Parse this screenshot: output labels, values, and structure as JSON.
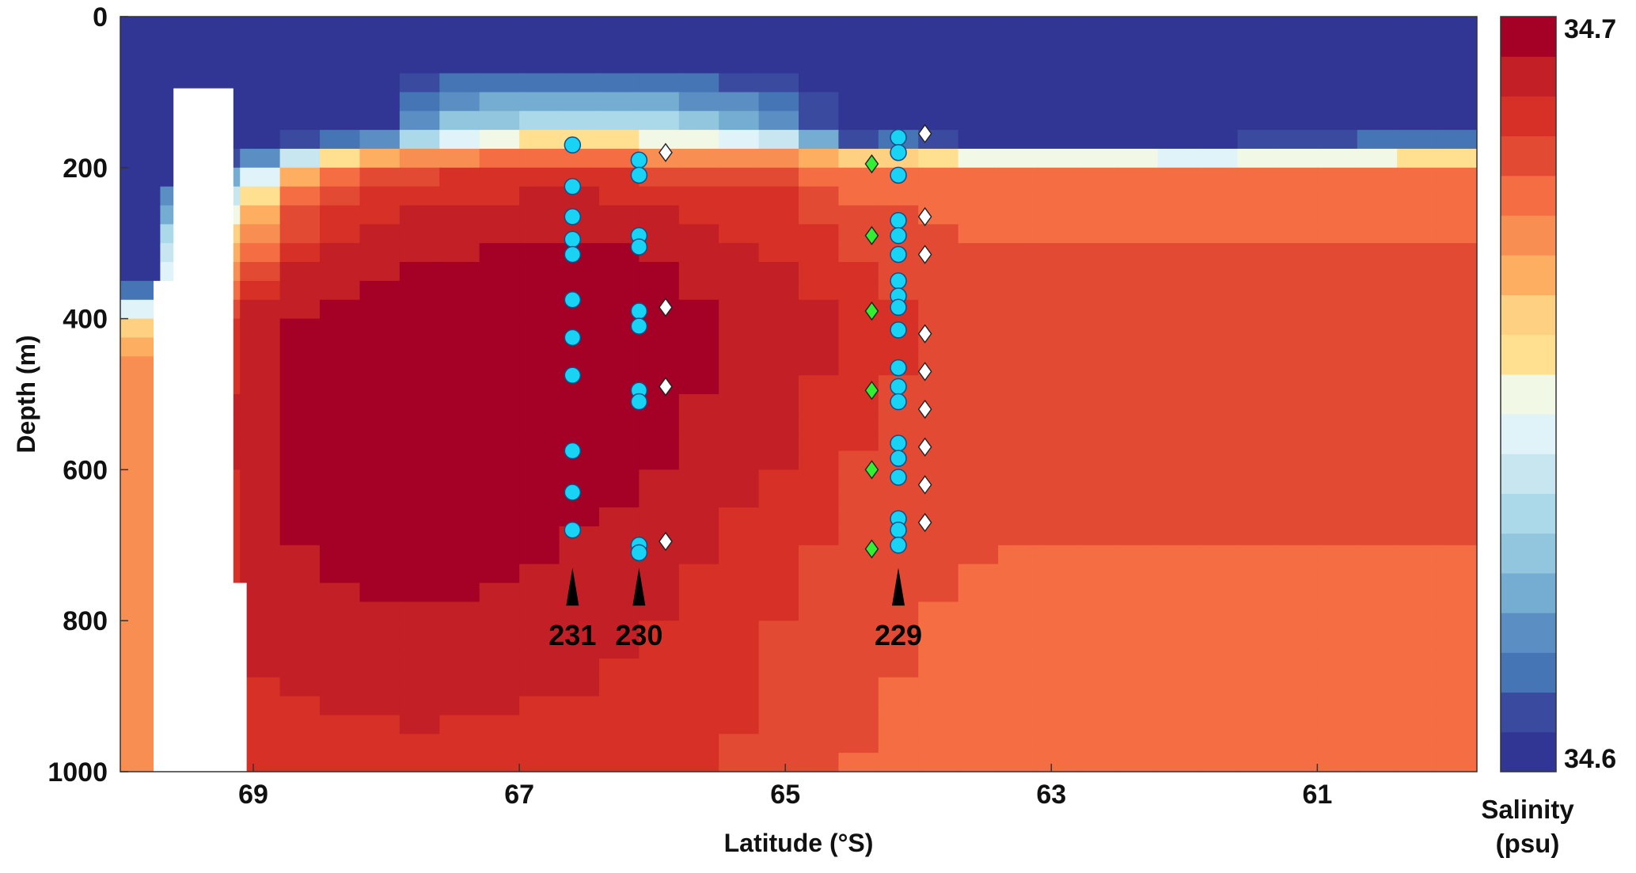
{
  "chart_data": {
    "type": "heatmap",
    "title": "",
    "xlabel": "Latitude (°S)",
    "ylabel": "Depth (m)",
    "xlim": [
      70.0,
      59.8
    ],
    "ylim": [
      0,
      1000
    ],
    "x_ticks": [
      "69",
      "67",
      "65",
      "63",
      "61"
    ],
    "y_ticks": [
      "0",
      "200",
      "400",
      "600",
      "800",
      "1000"
    ],
    "colorbar": {
      "label_line1": "Salinity",
      "label_line2": "(psu)",
      "min_label": "34.6",
      "max_label": "34.7",
      "vmin": 34.6,
      "vmax": 34.7,
      "colors": [
        "#313695",
        "#3a4a9f",
        "#4575b4",
        "#5b8ec2",
        "#74add1",
        "#92c5de",
        "#abd9e9",
        "#c7e6ef",
        "#e0f3f8",
        "#f2f8e6",
        "#fee090",
        "#fed081",
        "#fdae61",
        "#f98e52",
        "#f46d43",
        "#e34a33",
        "#d73027",
        "#c21f26",
        "#a50026"
      ]
    },
    "salinity_profiles": {
      "note": "",
      "lat": [
        69.7,
        69.5,
        69.0,
        68.6,
        68.0,
        67.6,
        67.0,
        66.5,
        66.0,
        65.5,
        65.0,
        64.5,
        64.0,
        63.5,
        63.0,
        62.0,
        61.0,
        60.0
      ],
      "depth": [
        50,
        150,
        175,
        190,
        210,
        250,
        300,
        350,
        400,
        450,
        500,
        600,
        700,
        800,
        900,
        1000
      ],
      "salinity": [
        [
          34.6,
          34.6,
          34.6,
          34.6,
          34.6,
          34.6,
          34.6,
          34.6,
          34.6,
          34.6,
          34.6,
          34.6,
          34.6,
          34.6,
          34.6,
          34.6,
          34.6,
          34.6
        ],
        [
          34.6,
          34.6,
          34.6,
          34.6,
          34.6,
          34.63,
          34.637,
          34.64,
          34.64,
          34.63,
          34.62,
          34.6,
          34.6,
          34.6,
          34.6,
          34.6,
          34.6,
          34.6
        ],
        [
          34.6,
          34.6,
          34.605,
          34.62,
          34.64,
          34.66,
          34.668,
          34.67,
          34.666,
          34.664,
          34.66,
          34.62,
          34.625,
          34.6,
          34.6,
          34.605,
          34.62,
          34.625
        ],
        [
          34.6,
          34.6,
          34.62,
          34.65,
          34.672,
          34.675,
          34.676,
          34.676,
          34.675,
          34.673,
          34.673,
          34.67,
          34.665,
          34.66,
          34.66,
          34.655,
          34.655,
          34.66
        ],
        [
          34.6,
          34.602,
          34.64,
          34.67,
          34.682,
          34.684,
          34.685,
          34.686,
          34.684,
          34.682,
          34.68,
          34.676,
          34.676,
          34.674,
          34.674,
          34.676,
          34.676,
          34.678
        ],
        [
          34.6,
          34.63,
          34.66,
          34.68,
          34.688,
          34.69,
          34.692,
          34.692,
          34.69,
          34.688,
          34.686,
          34.68,
          34.678,
          34.678,
          34.678,
          34.678,
          34.678,
          34.678
        ],
        [
          34.6,
          34.65,
          34.675,
          34.688,
          34.691,
          34.693,
          34.694,
          34.695,
          34.693,
          34.69,
          34.688,
          34.684,
          34.68,
          34.679,
          34.679,
          34.679,
          34.679,
          34.679
        ],
        [
          34.6,
          34.665,
          34.685,
          34.692,
          34.695,
          34.698,
          34.7,
          34.7,
          34.697,
          34.692,
          34.69,
          34.686,
          34.682,
          34.68,
          34.68,
          34.68,
          34.68,
          34.68
        ],
        [
          34.66,
          34.68,
          34.69,
          34.696,
          34.698,
          34.702,
          34.704,
          34.702,
          34.699,
          34.695,
          34.692,
          34.688,
          34.684,
          34.682,
          34.682,
          34.682,
          34.682,
          34.682
        ],
        [
          34.67,
          34.685,
          34.692,
          34.697,
          34.7,
          34.702,
          34.703,
          34.701,
          34.698,
          34.695,
          34.692,
          34.688,
          34.684,
          34.682,
          34.682,
          34.682,
          34.682,
          34.682
        ],
        [
          34.67,
          34.686,
          34.693,
          34.697,
          34.7,
          34.701,
          34.702,
          34.7,
          34.697,
          34.694,
          34.691,
          34.686,
          34.682,
          34.681,
          34.681,
          34.681,
          34.681,
          34.681
        ],
        [
          34.67,
          34.686,
          34.693,
          34.696,
          34.698,
          34.699,
          34.699,
          34.697,
          34.695,
          34.692,
          34.689,
          34.684,
          34.681,
          34.68,
          34.68,
          34.68,
          34.68,
          34.68
        ],
        [
          34.67,
          34.686,
          34.692,
          34.695,
          34.697,
          34.697,
          34.696,
          34.694,
          34.692,
          34.689,
          34.686,
          34.682,
          34.68,
          34.679,
          34.679,
          34.679,
          34.679,
          34.679
        ],
        [
          34.67,
          34.685,
          34.691,
          34.693,
          34.694,
          34.694,
          34.693,
          34.692,
          34.69,
          34.687,
          34.684,
          34.681,
          34.679,
          34.678,
          34.678,
          34.678,
          34.678,
          34.678
        ],
        [
          34.67,
          34.684,
          34.689,
          34.69,
          34.691,
          34.691,
          34.69,
          34.689,
          34.688,
          34.686,
          34.683,
          34.68,
          34.678,
          34.677,
          34.677,
          34.677,
          34.677,
          34.677
        ],
        [
          34.67,
          34.682,
          34.685,
          34.686,
          34.687,
          34.687,
          34.686,
          34.686,
          34.685,
          34.684,
          34.682,
          34.679,
          34.677,
          34.676,
          34.676,
          34.676,
          34.676,
          34.676
        ]
      ]
    },
    "stations": [
      {
        "name": "231",
        "lat": 66.6
      },
      {
        "name": "230",
        "lat": 66.1
      },
      {
        "name": "229",
        "lat": 64.15
      }
    ],
    "series": [
      {
        "marker": "circle",
        "color": "#19d3f5",
        "lat": 66.6,
        "depths": [
          170,
          225,
          265,
          295,
          315,
          375,
          425,
          475,
          575,
          630,
          680
        ]
      },
      {
        "marker": "circle",
        "color": "#19d3f5",
        "lat": 66.1,
        "depths": [
          190,
          210,
          290,
          305,
          390,
          410,
          495,
          510,
          700,
          710
        ]
      },
      {
        "marker": "circle",
        "color": "#19d3f5",
        "lat": 64.15,
        "depths": [
          160,
          180,
          210,
          270,
          290,
          315,
          350,
          370,
          385,
          415,
          465,
          490,
          510,
          565,
          585,
          610,
          665,
          680,
          700
        ]
      },
      {
        "marker": "diamond",
        "color": "#ffffff",
        "lat": 65.9,
        "depths": [
          180,
          385,
          490,
          695
        ]
      },
      {
        "marker": "diamond",
        "color": "#ffffff",
        "lat": 63.95,
        "depths": [
          155,
          265,
          315,
          420,
          470,
          520,
          570,
          620,
          670
        ]
      },
      {
        "marker": "diamond",
        "color": "#33ee33",
        "lat": 64.35,
        "depths": [
          195,
          290,
          390,
          495,
          600,
          705
        ]
      }
    ]
  }
}
